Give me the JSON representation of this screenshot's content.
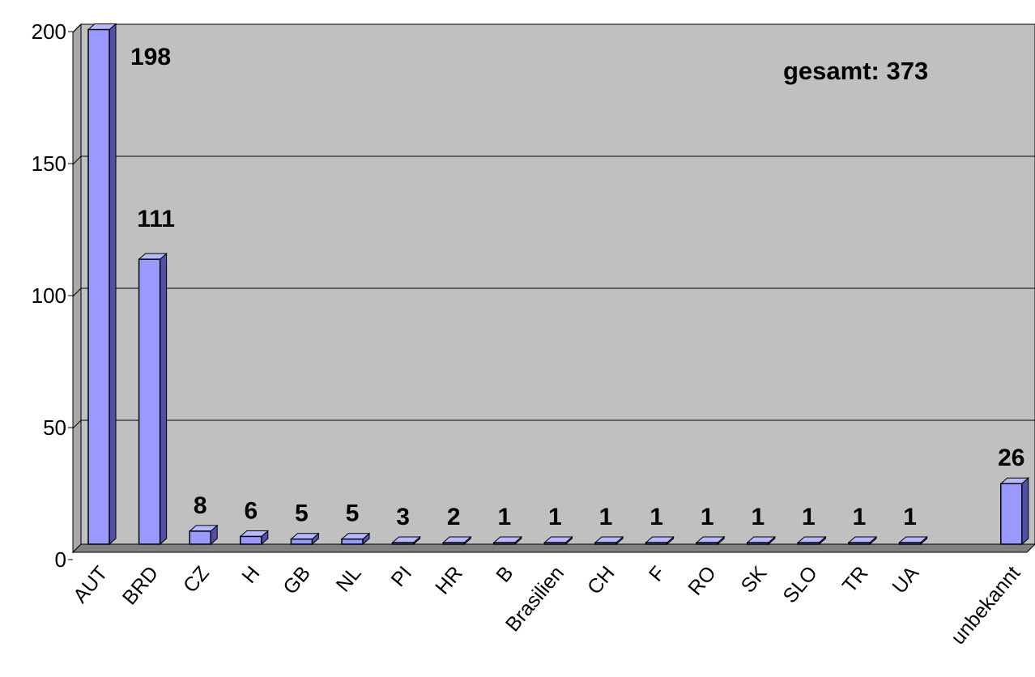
{
  "chart_data": {
    "type": "bar",
    "categories": [
      "AUT",
      "BRD",
      "CZ",
      "H",
      "GB",
      "NL",
      "PI",
      "HR",
      "B",
      "Brasilien",
      "CH",
      "F",
      "RO",
      "SK",
      "SLO",
      "TR",
      "UA",
      "",
      "unbekannt"
    ],
    "values": [
      198,
      111,
      8,
      6,
      5,
      5,
      3,
      2,
      1,
      1,
      1,
      1,
      1,
      1,
      1,
      1,
      1,
      null,
      26
    ],
    "data_labels": [
      "198",
      "111",
      "8",
      "6",
      "5",
      "5",
      "3",
      "2",
      "1",
      "1",
      "1",
      "1",
      "1",
      "1",
      "1",
      "1",
      "1",
      "",
      "26"
    ],
    "title": "",
    "xlabel": "",
    "ylabel": "",
    "ylim": [
      0,
      200
    ],
    "yticks": [
      0,
      50,
      100,
      150,
      200
    ],
    "ytick_labels": [
      "0",
      "50",
      "100",
      "150",
      "200"
    ],
    "grid": true,
    "legend": "none",
    "annotation": "gesamt: 373",
    "colors": {
      "bar_front": "#9999ff",
      "bar_side": "#5050a8",
      "bar_top": "#b8b8ff",
      "wall": "#c0c0c0",
      "floor": "#808080"
    }
  }
}
